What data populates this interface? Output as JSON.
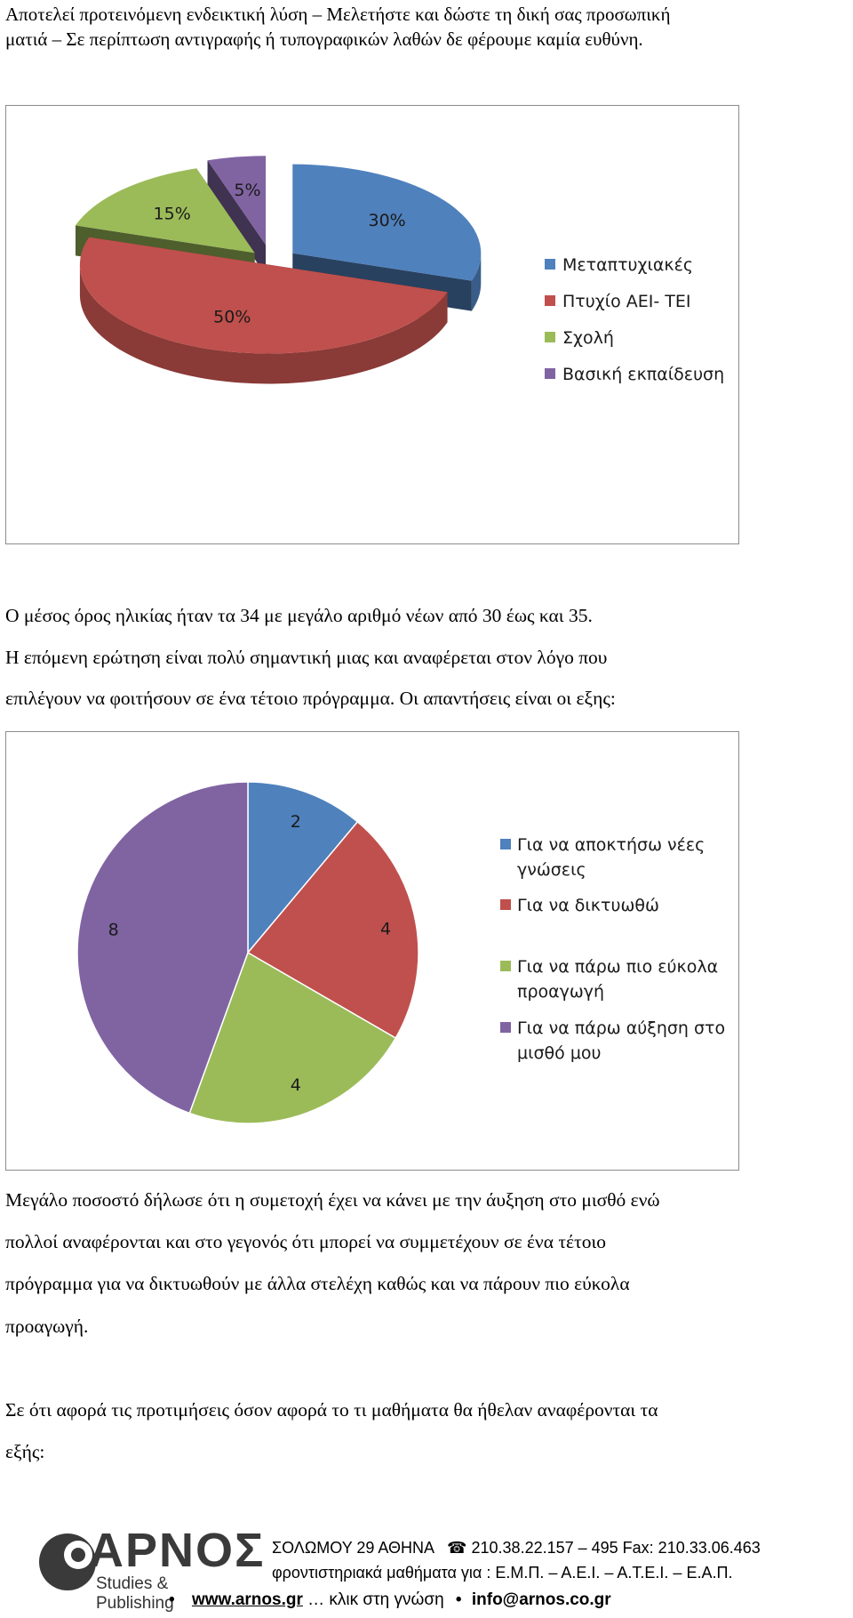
{
  "header_note": {
    "line1": "Αποτελεί προτεινόμενη ενδεικτική λύση – Μελετήστε και δώστε τη δική σας προσωπική",
    "line2": "ματιά – Σε περίπτωση αντιγραφής ή τυπογραφικών λαθών δε φέρουμε καμία ευθύνη."
  },
  "chart_data": [
    {
      "type": "pie",
      "style": "3d-exploded",
      "title": "",
      "series": [
        {
          "labels": [
            "Μεταπτυχιακές",
            "Πτυχίο ΑΕΙ- ΤΕΙ",
            "Σχολή",
            "Βασική εκπαίδευση"
          ],
          "values": [
            30,
            50,
            15,
            5
          ],
          "data_labels": [
            "30%",
            "50%",
            "15%",
            "5%"
          ]
        }
      ],
      "colors": [
        "#4f81bd",
        "#c0504d",
        "#9bbb59",
        "#8064a2"
      ],
      "legend": "right",
      "legend_entries": [
        "Μεταπτυχιακές",
        "Πτυχίο ΑΕΙ- ΤΕΙ",
        "Σχολή",
        "Βασική εκπαίδευση"
      ]
    },
    {
      "type": "pie",
      "title": "",
      "series": [
        {
          "labels": [
            "Για να αποκτήσω νέες γνώσεις",
            "Για να δικτυωθώ",
            "Για να πάρω πιο εύκολα προαγωγή",
            "Για να πάρω αύξηση στο μισθό μου"
          ],
          "values": [
            2,
            4,
            4,
            8
          ],
          "data_labels": [
            "2",
            "4",
            "4",
            "8"
          ]
        }
      ],
      "colors": [
        "#4f81bd",
        "#c0504d",
        "#9bbb59",
        "#8064a2"
      ],
      "legend": "right",
      "legend_entries": [
        [
          "Για να αποκτήσω νέες",
          "γνώσεις"
        ],
        [
          "Για να δικτυωθώ"
        ],
        [
          "Για να πάρω πιο εύκολα",
          "προαγωγή"
        ],
        [
          "Για να πάρω αύξηση στο",
          "μισθό μου"
        ]
      ]
    }
  ],
  "paragraphs": {
    "p1": "Ο μέσος όρος ηλικίας ήταν τα 34 με μεγάλο αριθμό νέων από 30 έως και 35.",
    "p2_line1": "Η επόμενη ερώτηση είναι πολύ σημαντική μιας και αναφέρεται στον λόγο που",
    "p2_line2": "επιλέγουν να φοιτήσουν σε ένα τέτοιο πρόγραμμα. Οι απαντήσεις είναι οι εξης:",
    "p3_line1": "Μεγάλο ποσοστό δήλωσε ότι η συμετοχή έχει να κάνει με την άυξηση στο μισθό ενώ",
    "p3_line2": "πολλοί αναφέρονται και στο γεγονός ότι μπορεί να συμμετέχουν σε ένα τέτοιο",
    "p3_line3": "πρόγραμμα για να δικτυωθούν με άλλα στελέχη καθώς και να πάρουν πιο εύκολα",
    "p3_line4": "προαγωγή.",
    "p4_line1": "Σε ότι αφορά τις προτιμήσεις όσον αφορά το τι μαθήματα θα ήθελαν αναφέρονται τα",
    "p4_line2": "εξής:"
  },
  "footer": {
    "logo_word": "ΑΡΝΟΣ",
    "logo_sub": "Studies & Publishing",
    "address": "ΣΟΛΩΜΟΥ 29  ΑΘΗΝΑ",
    "phone_icon": "phone-icon",
    "phone": "210.38.22.157 – 495  Fax: 210.33.06.463",
    "tagline": "φροντιστηριακά μαθήματα  για :  Ε.Μ.Π. – Α.Ε.Ι. – Α.Τ.Ε.Ι. – Ε.Α.Π.",
    "website": "www.arnos.gr",
    "website_note": " … κλικ στη γνώση ",
    "email": "info@arnos.co.gr"
  }
}
